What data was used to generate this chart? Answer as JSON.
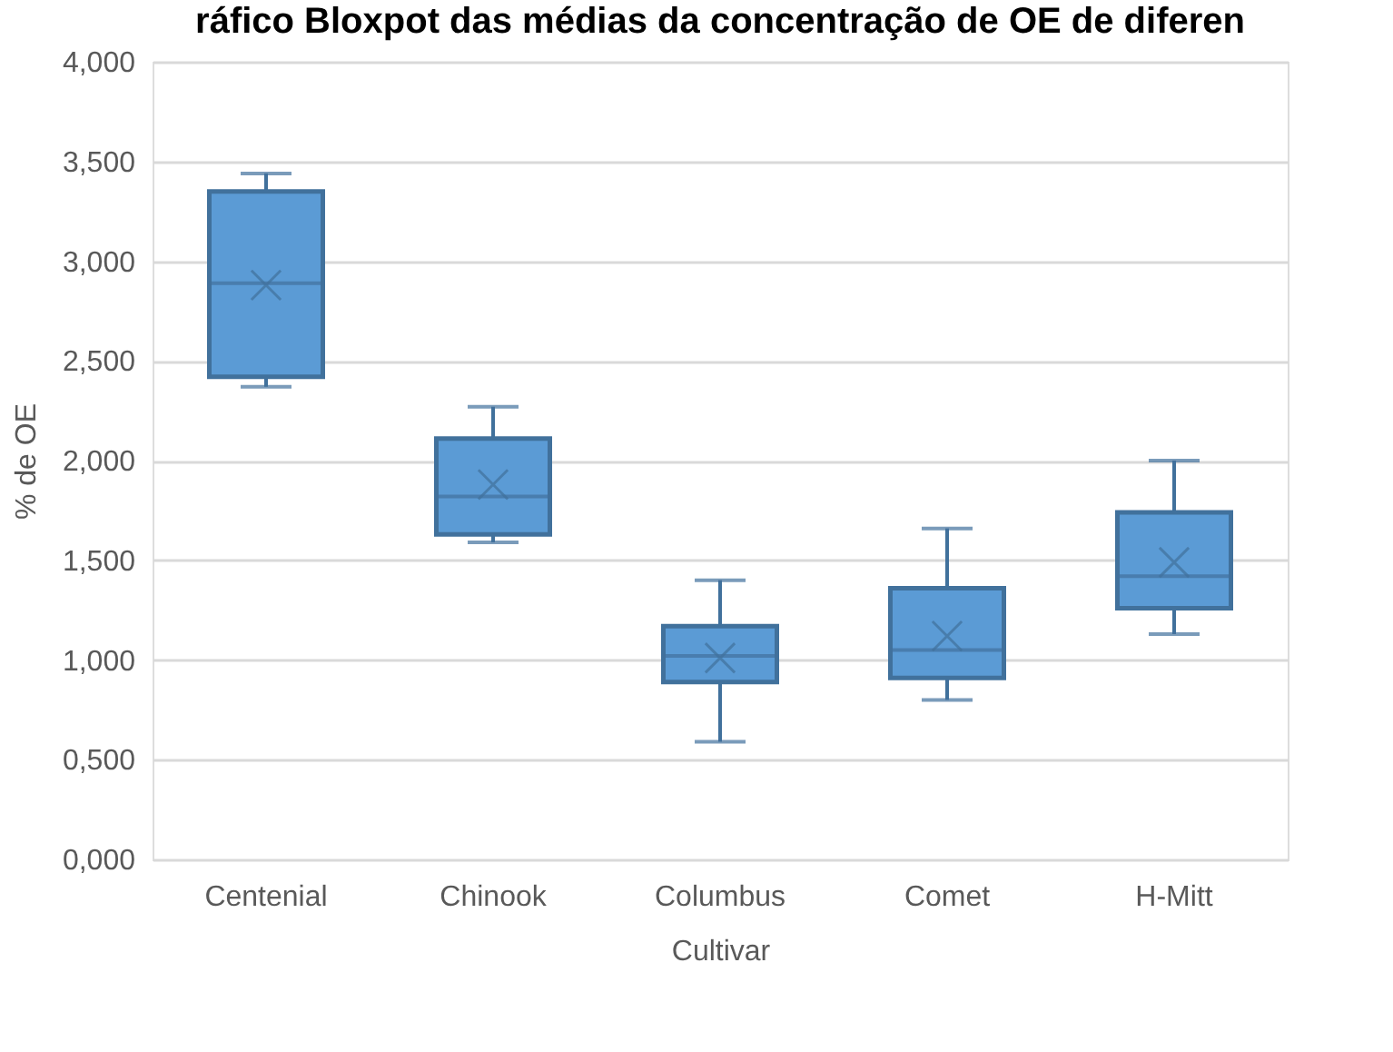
{
  "chart_data": {
    "type": "box",
    "title": "ráfico Bloxpot das médias da concentração de OE de diferen",
    "xlabel": "Cultivar",
    "ylabel": "% de OE",
    "categories": [
      "Centenial",
      "Chinook",
      "Columbus",
      "Comet",
      "H-Mitt"
    ],
    "color": "#5b9bd5",
    "boxes": [
      {
        "low": 2.37,
        "q1": 2.42,
        "median": 2.89,
        "q3": 3.35,
        "high": 3.44,
        "mean": 2.88
      },
      {
        "low": 1.59,
        "q1": 1.63,
        "median": 1.82,
        "q3": 2.11,
        "high": 2.27,
        "mean": 1.88
      },
      {
        "low": 0.59,
        "q1": 0.89,
        "median": 1.02,
        "q3": 1.17,
        "high": 1.4,
        "mean": 1.01
      },
      {
        "low": 0.8,
        "q1": 0.91,
        "median": 1.05,
        "q3": 1.36,
        "high": 1.66,
        "mean": 1.12
      },
      {
        "low": 1.13,
        "q1": 1.26,
        "median": 1.42,
        "q3": 1.74,
        "high": 2.0,
        "mean": 1.49
      }
    ],
    "ylim": [
      0,
      4
    ],
    "yticks": [
      {
        "value": 0,
        "label": "0,000"
      },
      {
        "value": 0.5,
        "label": "0,500"
      },
      {
        "value": 1,
        "label": "1,000"
      },
      {
        "value": 1.5,
        "label": "1,500"
      },
      {
        "value": 2,
        "label": "2,000"
      },
      {
        "value": 2.5,
        "label": "2,500"
      },
      {
        "value": 3,
        "label": "3,000"
      },
      {
        "value": 3.5,
        "label": "3,500"
      },
      {
        "value": 4,
        "label": "4,000"
      }
    ],
    "grid": "y",
    "marker": "cross"
  }
}
